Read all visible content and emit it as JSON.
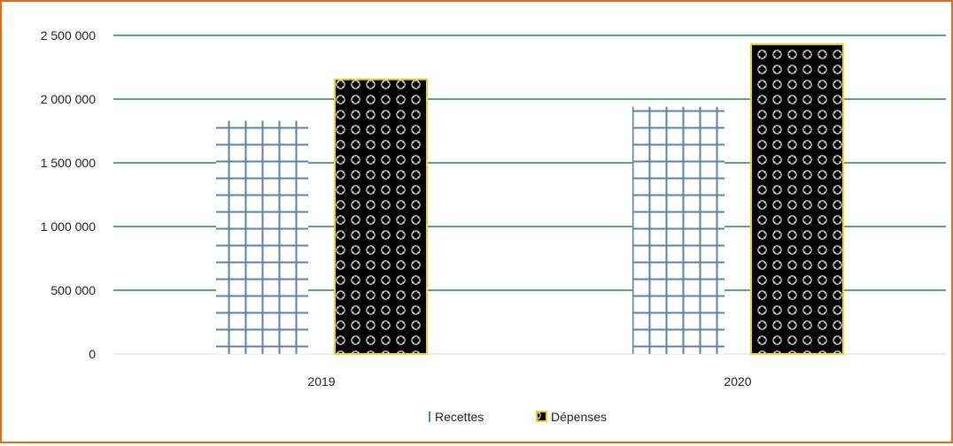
{
  "chart_data": {
    "type": "bar",
    "categories": [
      "2019",
      "2020"
    ],
    "series": [
      {
        "name": "Recettes",
        "values": [
          1830000,
          1940000
        ]
      },
      {
        "name": "Dépenses",
        "values": [
          2155000,
          2430000
        ]
      }
    ],
    "title": "",
    "xlabel": "",
    "ylabel": "",
    "ylim": [
      0,
      2500000
    ],
    "yticks": [
      "0",
      "500 000",
      "1 000 000",
      "1 500 000",
      "2 000 000",
      "2 500 000"
    ],
    "grid": true,
    "legend_position": "bottom"
  },
  "colors": {
    "frame_border": "#e36c1c",
    "gridline": "#1e8c3a",
    "recettes_grid": "#5b82a8",
    "depenses_fill": "#000000",
    "depenses_border": "#f2d21b"
  }
}
